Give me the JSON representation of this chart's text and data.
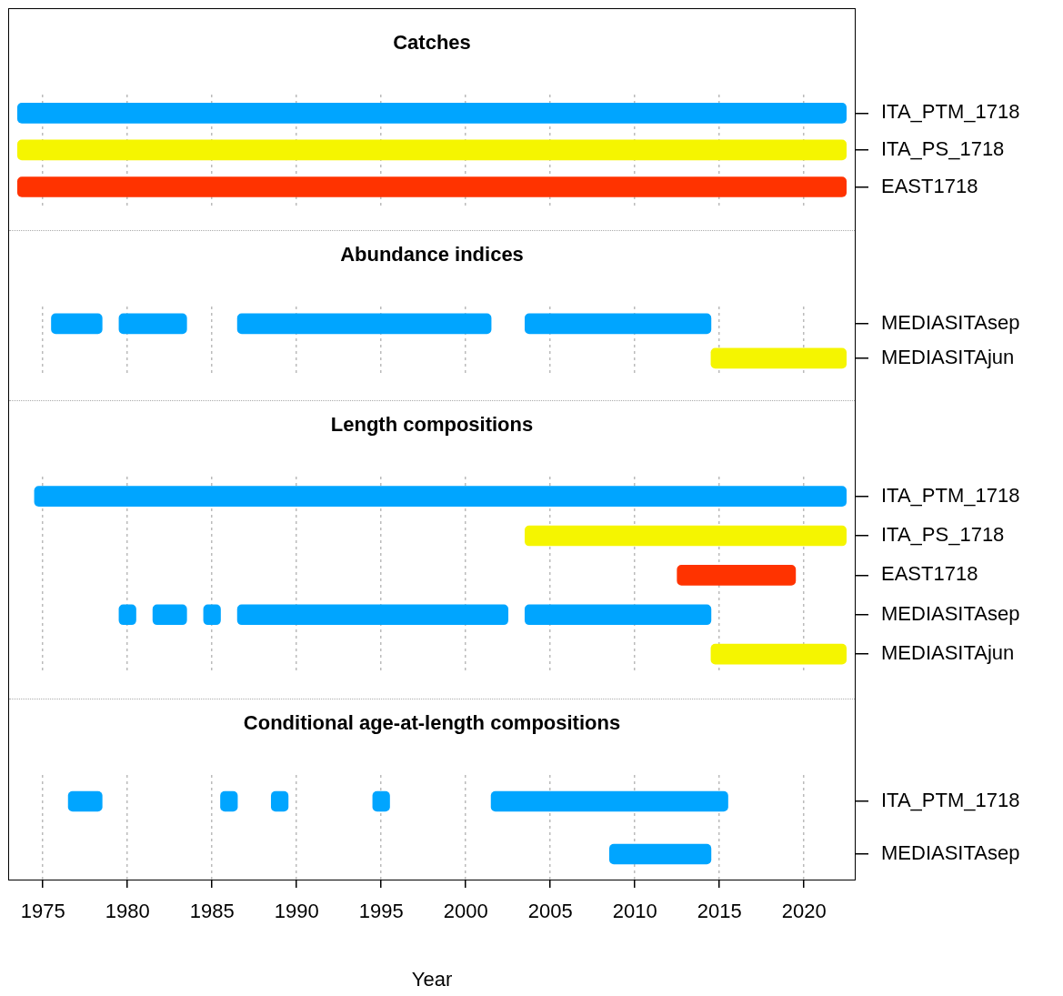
{
  "chart_data": [
    {
      "type": "bar",
      "orientation": "horizontal",
      "title": "Catches",
      "categories": [
        "ITA_PTM_1718",
        "ITA_PS_1718",
        "EAST1718"
      ],
      "series": [
        {
          "colors": [
            "#00a5ff",
            "#f5f500",
            "#ff3300"
          ],
          "base": [
            1973.5,
            1973.5,
            1973.5
          ],
          "values": [
            49,
            49,
            49
          ]
        }
      ],
      "xlim": [
        1973,
        2023
      ],
      "xticks": [
        1975,
        1980,
        1985,
        1990,
        1995,
        2000,
        2005,
        2010,
        2015,
        2020
      ],
      "grid": "x",
      "tick_labels": "y"
    },
    {
      "type": "bar",
      "orientation": "horizontal",
      "title": "Abundance indices",
      "categories": [
        "MEDIASITAsep",
        "MEDIASITAjun"
      ],
      "series": [
        {
          "colors": [
            "#00a5ff",
            "#f5f500"
          ],
          "base": [
            1975.5,
            2014.5
          ],
          "values": [
            3,
            8
          ]
        },
        {
          "colors": [
            "#00a5ff",
            null
          ],
          "base": [
            1979.5,
            null
          ],
          "values": [
            4,
            null
          ]
        },
        {
          "colors": [
            "#00a5ff",
            null
          ],
          "base": [
            1986.5,
            null
          ],
          "values": [
            15,
            null
          ]
        },
        {
          "colors": [
            "#00a5ff",
            null
          ],
          "base": [
            2003.5,
            null
          ],
          "values": [
            11,
            null
          ]
        }
      ],
      "xlim": [
        1973,
        2023
      ],
      "xticks": [
        1975,
        1980,
        1985,
        1990,
        1995,
        2000,
        2005,
        2010,
        2015,
        2020
      ],
      "grid": "x",
      "tick_labels": "y"
    },
    {
      "type": "bar",
      "orientation": "horizontal",
      "title": "Length compositions",
      "categories": [
        "ITA_PTM_1718",
        "ITA_PS_1718",
        "EAST1718",
        "MEDIASITAsep",
        "MEDIASITAjun"
      ],
      "series": [
        {
          "colors": [
            "#00a5ff",
            "#f5f500",
            "#ff3300",
            "#00a5ff",
            "#f5f500"
          ],
          "base": [
            1974.5,
            2003.5,
            2012.5,
            1979.5,
            2014.5
          ],
          "values": [
            48,
            19,
            7,
            1,
            8
          ]
        },
        {
          "colors": [
            null,
            null,
            null,
            "#00a5ff",
            null
          ],
          "base": [
            null,
            null,
            null,
            1981.5,
            null
          ],
          "values": [
            null,
            null,
            null,
            2,
            null
          ]
        },
        {
          "colors": [
            null,
            null,
            null,
            "#00a5ff",
            null
          ],
          "base": [
            null,
            null,
            null,
            1984.5,
            null
          ],
          "values": [
            null,
            null,
            null,
            1,
            null
          ]
        },
        {
          "colors": [
            null,
            null,
            null,
            "#00a5ff",
            null
          ],
          "base": [
            null,
            null,
            null,
            1986.5,
            null
          ],
          "values": [
            null,
            null,
            null,
            16,
            null
          ]
        },
        {
          "colors": [
            null,
            null,
            null,
            "#00a5ff",
            null
          ],
          "base": [
            null,
            null,
            null,
            2003.5,
            null
          ],
          "values": [
            null,
            null,
            null,
            11,
            null
          ]
        }
      ],
      "xlim": [
        1973,
        2023
      ],
      "xticks": [
        1975,
        1980,
        1985,
        1990,
        1995,
        2000,
        2005,
        2010,
        2015,
        2020
      ],
      "grid": "x",
      "tick_labels": "y"
    },
    {
      "type": "bar",
      "orientation": "horizontal",
      "title": "Conditional age-at-length compositions",
      "categories": [
        "ITA_PTM_1718",
        "MEDIASITAsep"
      ],
      "series": [
        {
          "colors": [
            "#00a5ff",
            "#00a5ff"
          ],
          "base": [
            1976.5,
            2008.5
          ],
          "values": [
            2,
            6
          ]
        },
        {
          "colors": [
            "#00a5ff",
            null
          ],
          "base": [
            1985.5,
            null
          ],
          "values": [
            1,
            null
          ]
        },
        {
          "colors": [
            "#00a5ff",
            null
          ],
          "base": [
            1988.5,
            null
          ],
          "values": [
            1,
            null
          ]
        },
        {
          "colors": [
            "#00a5ff",
            null
          ],
          "base": [
            1994.5,
            null
          ],
          "values": [
            1,
            null
          ]
        },
        {
          "colors": [
            "#00a5ff",
            null
          ],
          "base": [
            2001.5,
            null
          ],
          "values": [
            14,
            null
          ]
        }
      ],
      "xlim": [
        1973,
        2023
      ],
      "xticks": [
        1975,
        1980,
        1985,
        1990,
        1995,
        2000,
        2005,
        2010,
        2015,
        2020
      ],
      "grid": "x",
      "xlabel": "Year"
    }
  ]
}
